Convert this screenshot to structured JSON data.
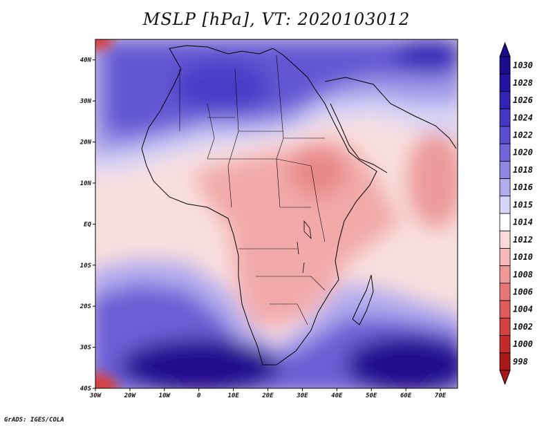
{
  "title": "MSLP [hPa], VT: 2020103012",
  "credit": "GrADS: IGES/COLA",
  "map": {
    "lon_range": [
      -30,
      75
    ],
    "lat_range": [
      -40,
      45
    ],
    "lon_ticks": [
      {
        "value": -30,
        "label": "30W"
      },
      {
        "value": -20,
        "label": "20W"
      },
      {
        "value": -10,
        "label": "10W"
      },
      {
        "value": 0,
        "label": "0"
      },
      {
        "value": 10,
        "label": "10E"
      },
      {
        "value": 20,
        "label": "20E"
      },
      {
        "value": 30,
        "label": "30E"
      },
      {
        "value": 40,
        "label": "40E"
      },
      {
        "value": 50,
        "label": "50E"
      },
      {
        "value": 60,
        "label": "60E"
      },
      {
        "value": 70,
        "label": "70E"
      }
    ],
    "lat_ticks": [
      {
        "value": 40,
        "label": "40N"
      },
      {
        "value": 30,
        "label": "30N"
      },
      {
        "value": 20,
        "label": "20N"
      },
      {
        "value": 10,
        "label": "10N"
      },
      {
        "value": 0,
        "label": "EQ"
      },
      {
        "value": -10,
        "label": "10S"
      },
      {
        "value": -20,
        "label": "20S"
      },
      {
        "value": -30,
        "label": "30S"
      },
      {
        "value": -40,
        "label": "40S"
      }
    ]
  },
  "colorbar": {
    "levels": [
      {
        "label": "1030",
        "color": "#1b0c8e"
      },
      {
        "label": "1028",
        "color": "#2514a4"
      },
      {
        "label": "1026",
        "color": "#3222b6"
      },
      {
        "label": "1024",
        "color": "#4536c4"
      },
      {
        "label": "1022",
        "color": "#5a4ccf"
      },
      {
        "label": "1020",
        "color": "#7164d8"
      },
      {
        "label": "1018",
        "color": "#8f86e2"
      },
      {
        "label": "1016",
        "color": "#b2acee"
      },
      {
        "label": "1015",
        "color": "#d8d6f8"
      },
      {
        "label": "1014",
        "color": "#ffffff"
      },
      {
        "label": "1012",
        "color": "#fbd9d9"
      },
      {
        "label": "1010",
        "color": "#f6b8b8"
      },
      {
        "label": "1008",
        "color": "#ef9797"
      },
      {
        "label": "1006",
        "color": "#e87878"
      },
      {
        "label": "1004",
        "color": "#e05b5b"
      },
      {
        "label": "1002",
        "color": "#d54040"
      },
      {
        "label": "1000",
        "color": "#c32a2a"
      },
      {
        "label": "998",
        "color": "#a81818"
      }
    ]
  },
  "pressure_regions": [
    {
      "name": "sahara-high",
      "level": "1022"
    },
    {
      "name": "east-africa-low",
      "level": "1008"
    },
    {
      "name": "south-atlantic-high",
      "level": "1030"
    },
    {
      "name": "south-indian-high",
      "level": "1030"
    },
    {
      "name": "southwest-corner-low",
      "level": "1000"
    },
    {
      "name": "northwest-corner-low",
      "level": "1002"
    }
  ]
}
